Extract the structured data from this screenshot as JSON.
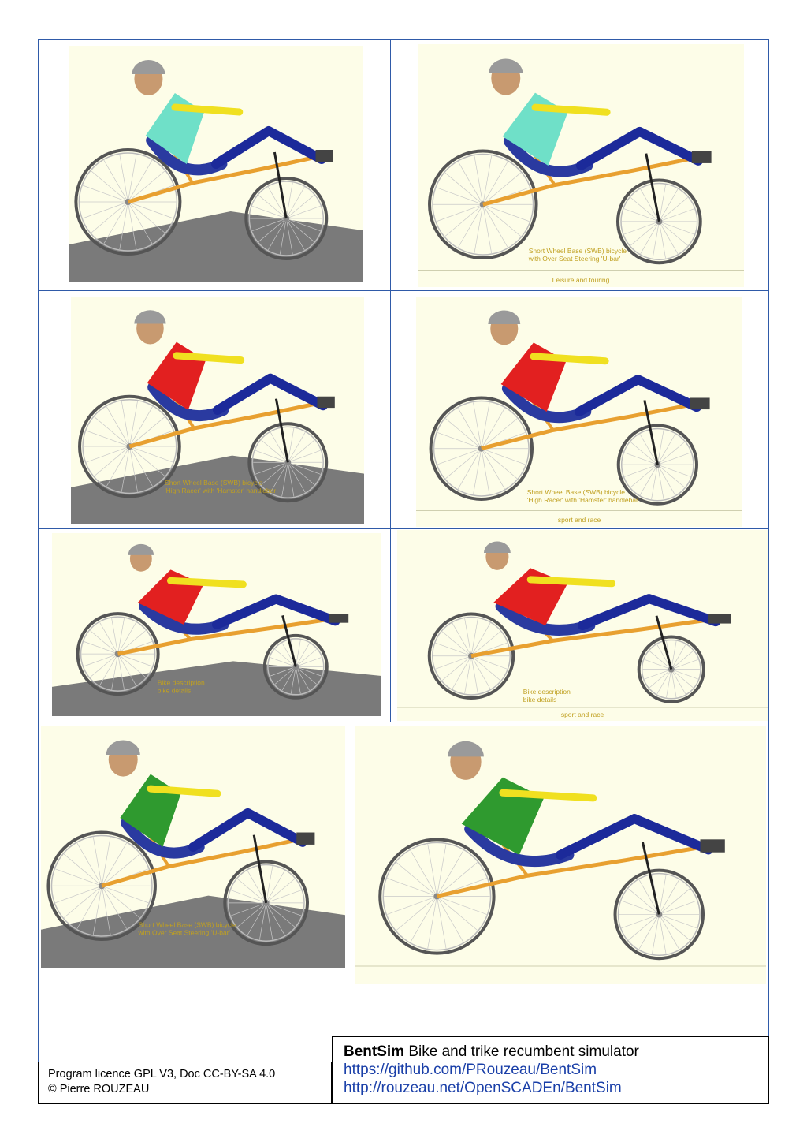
{
  "panels": [
    {
      "id": "p1",
      "captions": []
    },
    {
      "id": "p2",
      "captions": [
        "Short Wheel Base (SWB) bicycle",
        "with Over Seat Steering  'U-bar'",
        "Leisure and touring"
      ]
    },
    {
      "id": "p3",
      "captions": [
        "Short Wheel Base (SWB) bicycle",
        "'High Racer' with 'Hamster' handlebar"
      ]
    },
    {
      "id": "p4",
      "captions": [
        "Short Wheel Base (SWB) bicycle",
        "'High Racer' with 'Hamster' handlebar",
        "sport and race"
      ]
    },
    {
      "id": "p5",
      "captions": [
        "Bike description",
        "bike details"
      ]
    },
    {
      "id": "p6",
      "captions": [
        "Bike description",
        "bike details",
        "sport and race"
      ]
    },
    {
      "id": "p7",
      "captions": [
        "Short Wheel Base (SWB) bicycle",
        "with Over Seat Steering  'U-bar'"
      ]
    },
    {
      "id": "p8",
      "captions": []
    }
  ],
  "licence": {
    "line1": "Program licence GPL V3, Doc CC-BY-SA 4.0",
    "line2": "© Pierre ROUZEAU"
  },
  "title": {
    "name": "BentSim",
    "subtitle": " Bike and trike recumbent simulator",
    "link1": "https://github.com/PRouzeau/BentSim",
    "link2": "http://rouzeau.net/OpenSCADEn/BentSim"
  },
  "colors": {
    "frame_border": "#2f5aa8",
    "panel_bg": "#fdfde8",
    "bike_frame": "#e8a030",
    "caption": "#c0a020",
    "link": "#1a3fa8"
  }
}
